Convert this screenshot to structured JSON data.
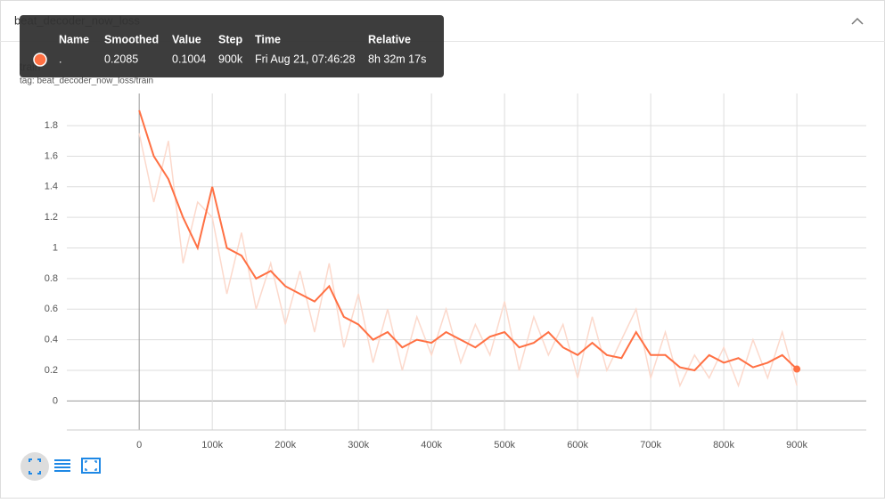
{
  "header": {
    "title": "beat_decoder_now_loss"
  },
  "tooltip": {
    "header": [
      "Name",
      "Smoothed",
      "Value",
      "Step",
      "Time",
      "Relative"
    ],
    "row": [
      ".",
      "0.2085",
      "0.1004",
      "900k",
      "Fri Aug 21, 07:46:28",
      "8h 32m 17s"
    ]
  },
  "chart_data": {
    "type": "line",
    "title": "train",
    "subtitle": "tag: beat_decoder_now_loss/train",
    "x": [
      0,
      20000,
      40000,
      60000,
      80000,
      100000,
      120000,
      140000,
      160000,
      180000,
      200000,
      220000,
      240000,
      260000,
      280000,
      300000,
      320000,
      340000,
      360000,
      380000,
      400000,
      420000,
      440000,
      460000,
      480000,
      500000,
      520000,
      540000,
      560000,
      580000,
      600000,
      620000,
      640000,
      660000,
      680000,
      700000,
      720000,
      740000,
      760000,
      780000,
      800000,
      820000,
      840000,
      860000,
      880000,
      900000
    ],
    "series": [
      {
        "color": "#fcd9cc",
        "values": [
          1.75,
          1.3,
          1.7,
          0.9,
          1.3,
          1.2,
          0.7,
          1.1,
          0.6,
          0.9,
          0.5,
          0.85,
          0.45,
          0.9,
          0.35,
          0.7,
          0.25,
          0.6,
          0.2,
          0.55,
          0.3,
          0.6,
          0.25,
          0.5,
          0.3,
          0.65,
          0.2,
          0.55,
          0.3,
          0.5,
          0.15,
          0.55,
          0.2,
          0.4,
          0.6,
          0.15,
          0.45,
          0.1,
          0.3,
          0.15,
          0.35,
          0.1,
          0.4,
          0.15,
          0.45,
          0.1004
        ]
      },
      {
        "color": "#ff7043",
        "values": [
          1.9,
          1.6,
          1.45,
          1.2,
          1.0,
          1.4,
          1.0,
          0.95,
          0.8,
          0.85,
          0.75,
          0.7,
          0.65,
          0.75,
          0.55,
          0.5,
          0.4,
          0.45,
          0.35,
          0.4,
          0.38,
          0.45,
          0.4,
          0.35,
          0.42,
          0.45,
          0.35,
          0.38,
          0.45,
          0.35,
          0.3,
          0.38,
          0.3,
          0.28,
          0.45,
          0.3,
          0.3,
          0.22,
          0.2,
          0.3,
          0.25,
          0.28,
          0.22,
          0.25,
          0.3,
          0.2085
        ]
      }
    ],
    "xlim": [
      -99000,
      995000
    ],
    "xticks": [
      0,
      {
        "value": 100000,
        "label": "100k"
      },
      {
        "value": 200000,
        "label": "200k"
      },
      {
        "value": 300000,
        "label": "300k"
      },
      {
        "value": 400000,
        "label": "400k"
      },
      {
        "value": 500000,
        "label": "500k"
      },
      {
        "value": 600000,
        "label": "600k"
      },
      {
        "value": 700000,
        "label": "700k"
      },
      {
        "value": 800000,
        "label": "800k"
      },
      {
        "value": 900000,
        "label": "900k"
      }
    ],
    "ylim": [
      -0.19,
      2.01
    ],
    "yticks": [
      0,
      0.2,
      0.4,
      0.6,
      0.8,
      1,
      1.2,
      1.4,
      1.6,
      1.8
    ],
    "grid": true
  }
}
